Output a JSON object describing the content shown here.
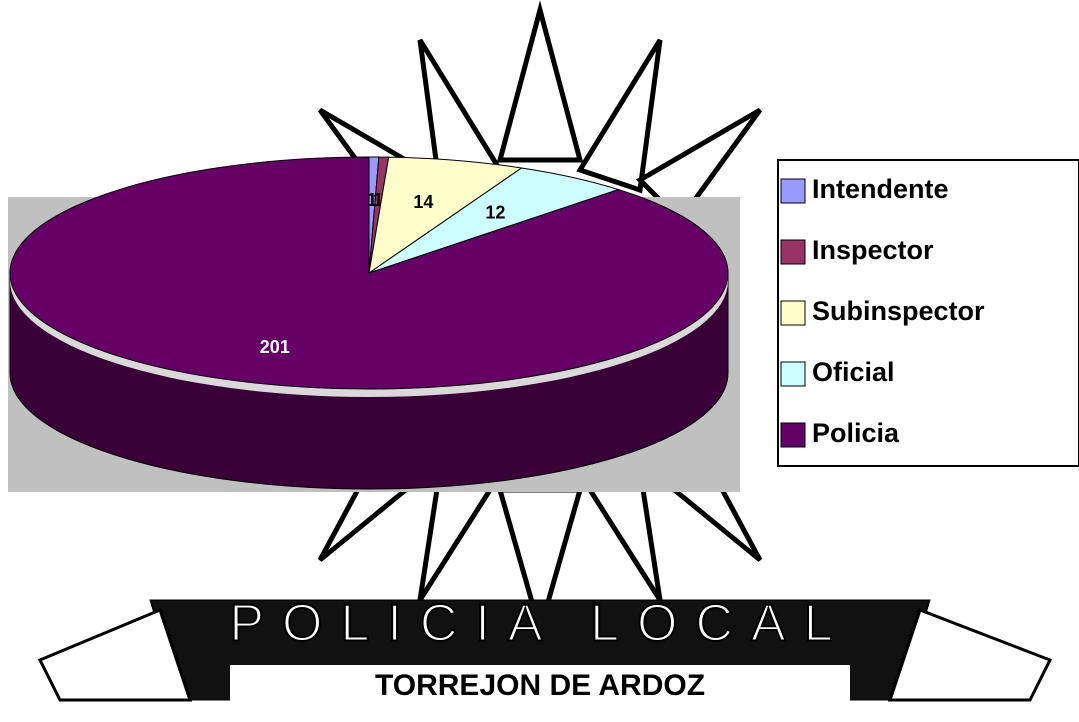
{
  "chart_data": {
    "type": "pie",
    "3d": true,
    "categories": [
      "Intendente",
      "Inspector",
      "Subinspector",
      "Oficial",
      "Policia"
    ],
    "values": [
      1,
      1,
      14,
      12,
      201
    ],
    "colors": [
      "#9999ff",
      "#993366",
      "#ffffcc",
      "#ccffff",
      "#660066"
    ],
    "legend": "right",
    "annotations": [
      "POLICIA LOCAL",
      "TORREJON DE ARDOZ"
    ]
  }
}
